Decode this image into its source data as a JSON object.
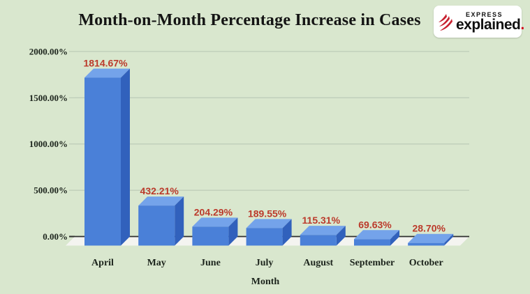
{
  "page": {
    "background": "#d9e7ce"
  },
  "header": {
    "title": "Month-on-Month Percentage Increase in Cases"
  },
  "logo": {
    "top": "EXPRESS",
    "main": "explained",
    "dot": ".",
    "accent": "#c8202f"
  },
  "chart_data": {
    "type": "bar",
    "style_3d": true,
    "title": "Month-on-Month Percentage Increase in Cases",
    "categories": [
      "April",
      "May",
      "June",
      "July",
      "August",
      "September",
      "October"
    ],
    "values": [
      1814.67,
      432.21,
      204.29,
      189.55,
      115.31,
      69.63,
      28.7
    ],
    "value_labels": [
      "1814.67%",
      "432.21%",
      "204.29%",
      "189.55%",
      "115.31%",
      "69.63%",
      "28.70%"
    ],
    "xlabel": "Month",
    "ylabel": "",
    "ylim": [
      0,
      2000
    ],
    "y_tick_values": [
      0,
      500,
      1000,
      1500,
      2000
    ],
    "y_tick_labels": [
      "0.00%",
      "500.00%",
      "1000.00%",
      "1500.00%",
      "2000.00%"
    ],
    "grid": true,
    "legend": false,
    "colors": {
      "bar_front": "#4a80d8",
      "bar_top": "#74a3ea",
      "bar_side": "#3161bc",
      "value_label": "#bb3a2b",
      "grid_line": "#b6c6b2",
      "axis_line": "#2e2e2e",
      "floor": "#f4f4f0",
      "text": "#1c241c"
    }
  }
}
